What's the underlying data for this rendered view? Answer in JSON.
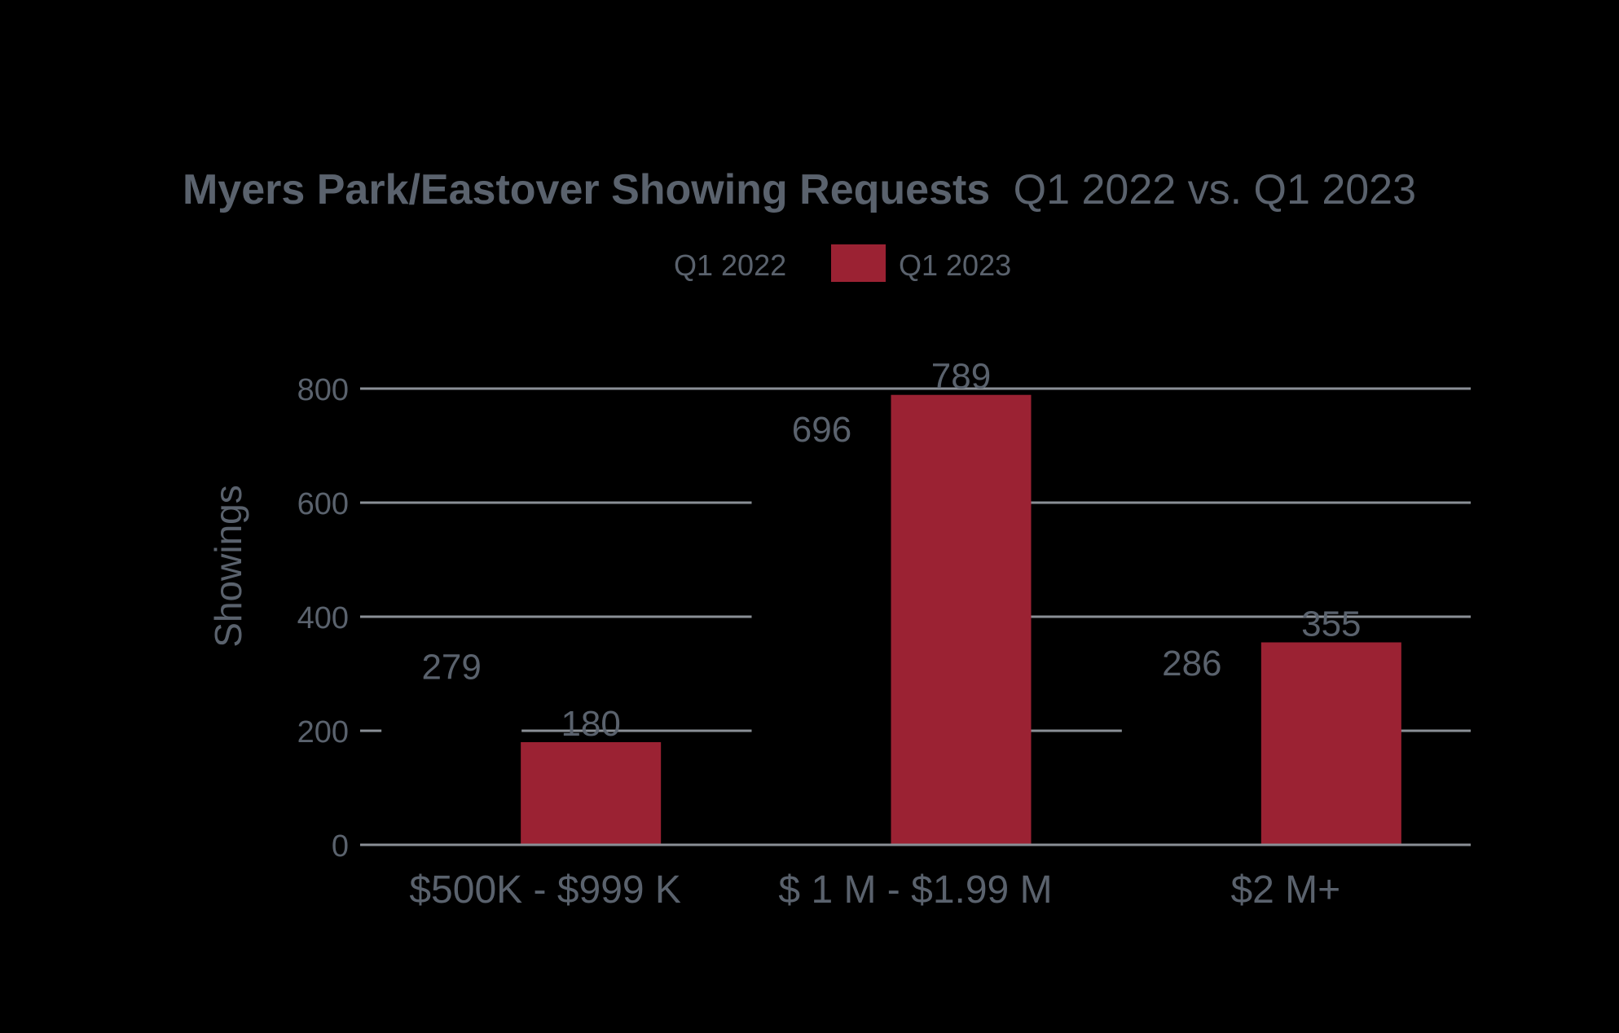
{
  "chart_data": {
    "type": "bar",
    "title_bold": "Myers Park/Eastover Showing Requests",
    "title_rest": "Q1 2022 vs. Q1 2023",
    "ylabel": "Showings",
    "xlabel": "",
    "categories": [
      "$500K - $999 K",
      "$ 1 M - $1.99 M",
      "$2 M+"
    ],
    "series": [
      {
        "name": "Q1 2022",
        "values": [
          279,
          696,
          286
        ],
        "color": "#000000",
        "label_color": "#5a626d"
      },
      {
        "name": "Q1 2023",
        "values": [
          180,
          789,
          355
        ],
        "color": "#9b2233",
        "label_color": "#5a626d"
      }
    ],
    "ylim": [
      0,
      800
    ],
    "yticks": [
      0,
      200,
      400,
      600,
      800
    ],
    "grid": true,
    "legend_position": "top-center",
    "colors": {
      "background": "#000000",
      "text": "#5a626d",
      "grid": "#8a8f96"
    }
  }
}
